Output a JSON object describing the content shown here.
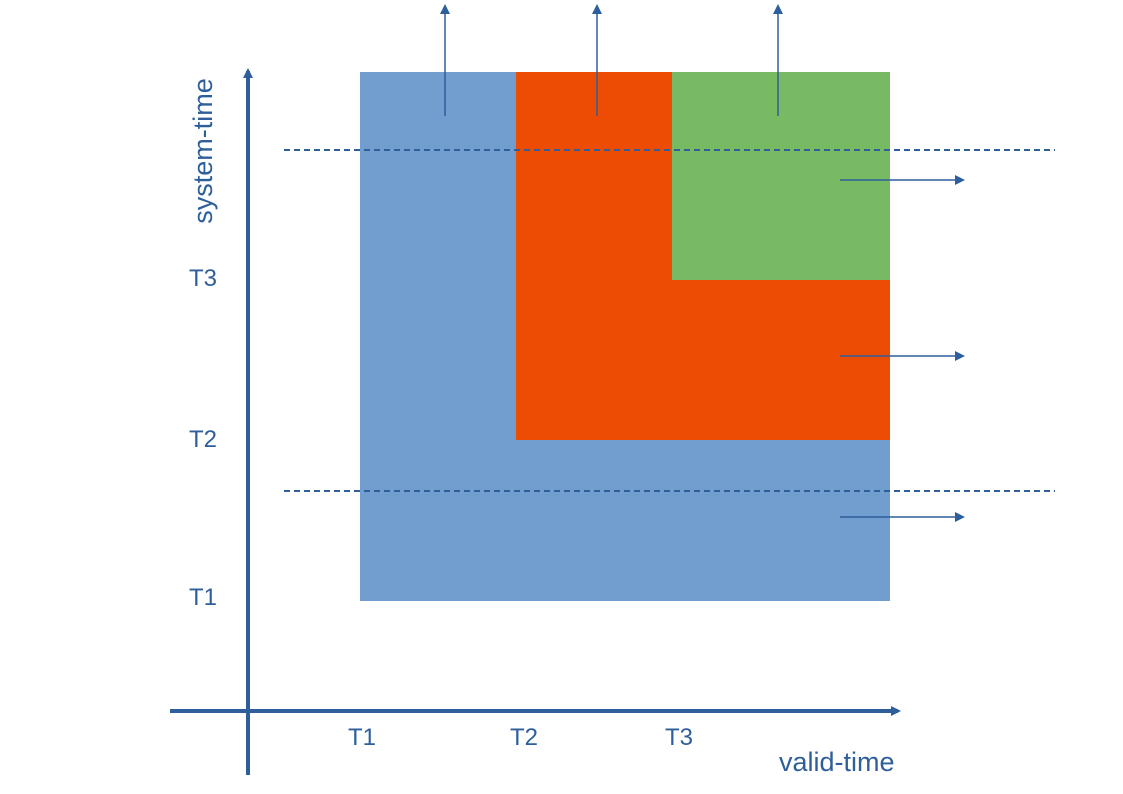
{
  "diagram": {
    "colors": {
      "axis": "#2E5F9B",
      "label": "#2E5F9B",
      "blue_region": "#719ECE",
      "orange_region": "#EC4C04",
      "green_region": "#78BA63",
      "guide_line": "#2E5F9B"
    },
    "axes": {
      "x_title": "valid-time",
      "y_title": "system-time",
      "x_ticks": [
        "T1",
        "T2",
        "T3"
      ],
      "y_ticks": [
        "T1",
        "T2",
        "T3"
      ]
    },
    "regions": [
      {
        "name": "blue-region",
        "valid_from": "T1",
        "system_from": "T1",
        "color": "blue_region"
      },
      {
        "name": "orange-region",
        "valid_from": "T2",
        "system_from": "T2",
        "color": "orange_region"
      },
      {
        "name": "green-region",
        "valid_from": "T3",
        "system_from": "T3",
        "color": "green_region"
      }
    ],
    "arrows": {
      "up": 3,
      "right": 3
    },
    "dashed_lines": 2
  }
}
